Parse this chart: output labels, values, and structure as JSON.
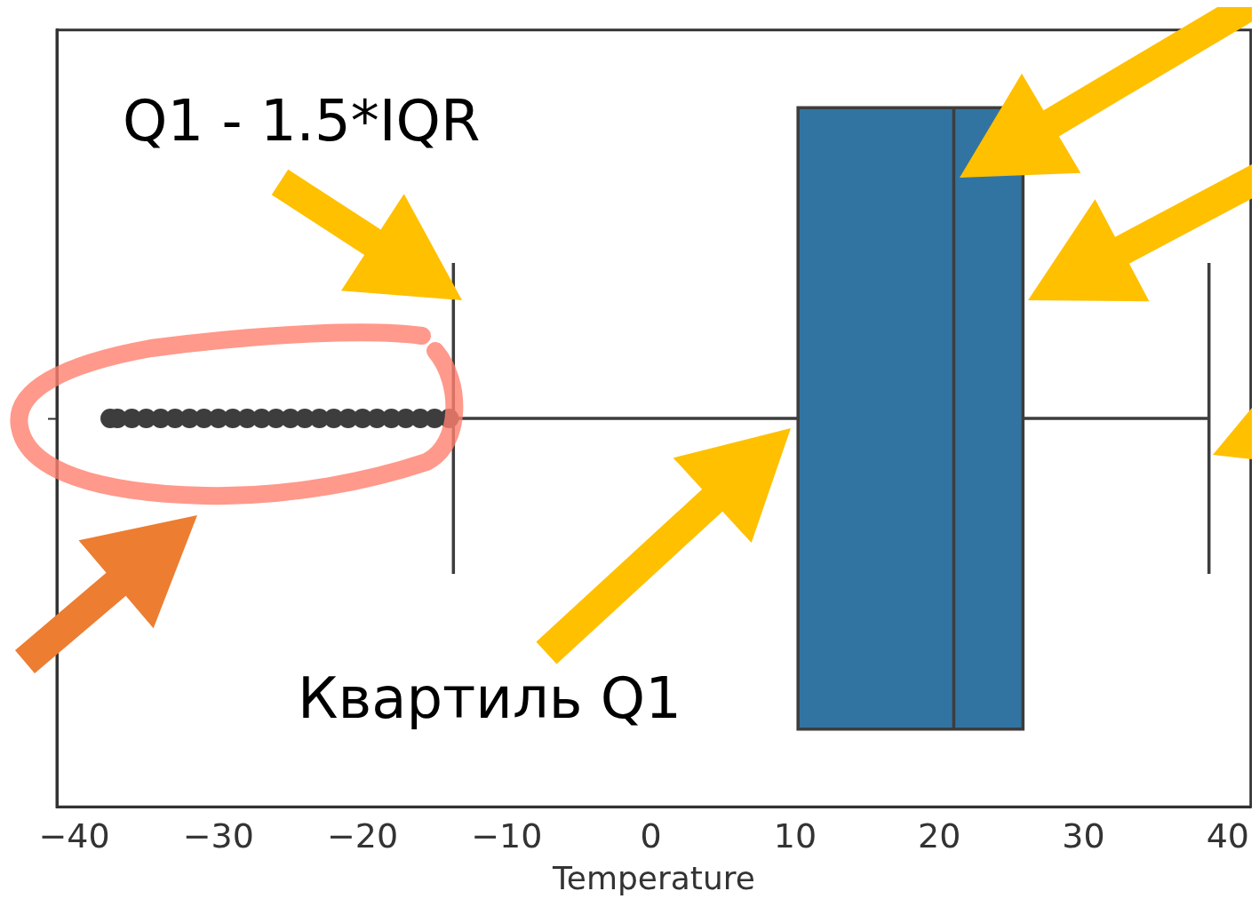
{
  "chart_data": {
    "type": "box",
    "orientation": "horizontal",
    "xlabel": "Temperature",
    "categories": [
      null
    ],
    "series": [
      {
        "color": "#3274a1",
        "boxes": [
          {
            "low": -13.7,
            "q1": 10.2,
            "median": 21,
            "q3": 25.8,
            "high": 38.7,
            "outliers": [
              -37.5,
              -37,
              -36,
              -35,
              -34,
              -33,
              -32,
              -31,
              -30,
              -29,
              -28,
              -27,
              -26,
              -25,
              -24,
              -23,
              -22,
              -21,
              -20,
              -19,
              -18,
              -17,
              -16,
              -15,
              -14
            ]
          }
        ]
      }
    ],
    "xlim": [
      -41.2,
      41.6
    ],
    "xticks": [
      -40,
      -30,
      -20,
      -10,
      0,
      10,
      20,
      30,
      40
    ],
    "grid": false,
    "annotations": [
      "Q1 - 1.5*IQR",
      "Квартиль Q1"
    ]
  }
}
